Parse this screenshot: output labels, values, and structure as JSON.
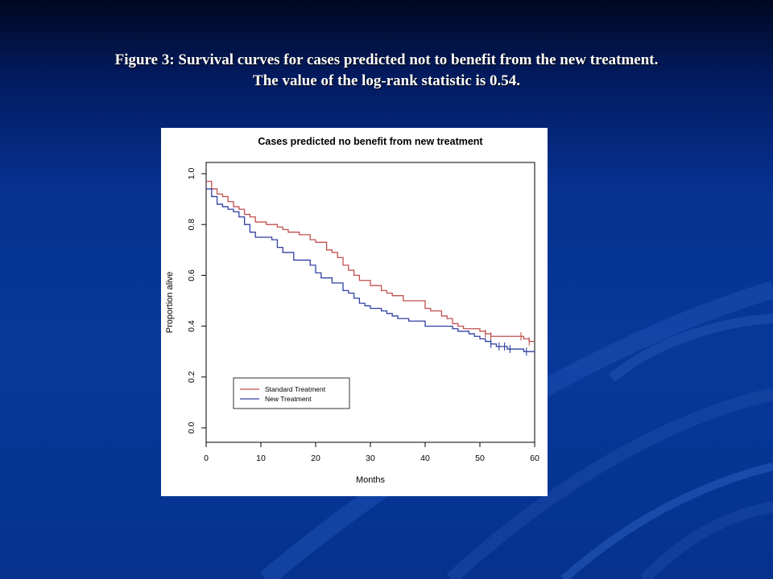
{
  "slide": {
    "caption_line1": "Figure 3: Survival curves for cases predicted not to benefit from the new treatment.",
    "caption_line2": "The value of the log-rank statistic is 0.54.",
    "background_color": "#06338f",
    "caption_color": "#ffffff"
  },
  "chart_data": {
    "type": "line",
    "step": true,
    "title": "Cases predicted no benefit from new treatment",
    "xlabel": "Months",
    "ylabel": "Proportion alive",
    "xlim": [
      0,
      60
    ],
    "ylim": [
      0,
      1
    ],
    "xticks": [
      "0",
      "10",
      "20",
      "30",
      "40",
      "50",
      "60"
    ],
    "yticks": [
      "0.0",
      "0.2",
      "0.4",
      "0.6",
      "0.8",
      "1.0"
    ],
    "grid": false,
    "legend_position": "bottom-left",
    "series": [
      {
        "name": "Standard Treatment",
        "color": "#c0504d",
        "x": [
          0,
          1,
          2,
          3,
          4,
          5,
          6,
          7,
          8,
          9,
          11,
          13,
          14,
          15,
          17,
          19,
          20,
          21,
          22,
          23,
          24,
          25,
          26,
          27,
          28,
          30,
          32,
          33,
          34,
          36,
          40,
          41,
          43,
          44,
          45,
          46,
          47,
          48,
          50,
          51,
          52,
          54,
          56,
          58,
          59,
          60
        ],
        "y": [
          0.97,
          0.94,
          0.92,
          0.91,
          0.89,
          0.87,
          0.86,
          0.84,
          0.83,
          0.81,
          0.8,
          0.79,
          0.78,
          0.77,
          0.76,
          0.74,
          0.73,
          0.73,
          0.7,
          0.69,
          0.67,
          0.64,
          0.62,
          0.6,
          0.58,
          0.56,
          0.54,
          0.53,
          0.52,
          0.5,
          0.47,
          0.46,
          0.44,
          0.43,
          0.41,
          0.4,
          0.39,
          0.39,
          0.38,
          0.37,
          0.36,
          0.36,
          0.36,
          0.35,
          0.34,
          0.34
        ],
        "censored_x": [
          51,
          52,
          57.5,
          59
        ]
      },
      {
        "name": "New Treatment",
        "color": "#2f3fa0",
        "x": [
          0,
          1,
          2,
          3,
          4,
          5,
          6,
          7,
          8,
          9,
          12,
          13,
          14,
          16,
          19,
          20,
          21,
          23,
          25,
          26,
          27,
          28,
          29,
          30,
          32,
          33,
          34,
          35,
          37,
          40,
          43,
          45,
          46,
          48,
          49,
          50,
          51,
          52,
          53,
          55,
          57,
          58,
          60
        ],
        "y": [
          0.94,
          0.91,
          0.88,
          0.87,
          0.86,
          0.85,
          0.83,
          0.8,
          0.77,
          0.75,
          0.74,
          0.71,
          0.69,
          0.66,
          0.64,
          0.61,
          0.59,
          0.57,
          0.54,
          0.53,
          0.51,
          0.49,
          0.48,
          0.47,
          0.46,
          0.45,
          0.44,
          0.43,
          0.42,
          0.4,
          0.4,
          0.39,
          0.38,
          0.37,
          0.36,
          0.35,
          0.34,
          0.33,
          0.32,
          0.31,
          0.31,
          0.3,
          0.3
        ],
        "censored_x": [
          52,
          53.5,
          54.5,
          55.5,
          58.5
        ]
      }
    ]
  }
}
